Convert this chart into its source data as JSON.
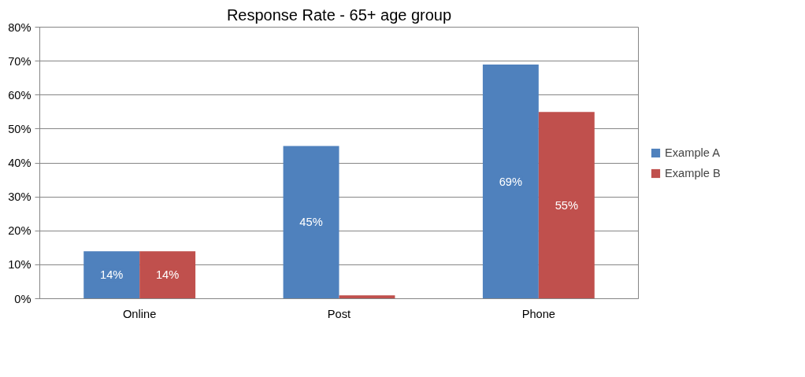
{
  "chart_data": {
    "type": "bar",
    "title": "Response Rate - 65+ age group",
    "categories": [
      "Online",
      "Post",
      "Phone"
    ],
    "series": [
      {
        "name": "Example A",
        "color": "#4f81bd",
        "values": [
          14,
          45,
          69
        ],
        "value_labels": [
          "14%",
          "45%",
          "69%"
        ]
      },
      {
        "name": "Example B",
        "color": "#c0504d",
        "values": [
          14,
          1,
          55
        ],
        "value_labels": [
          "14%",
          null,
          "55%"
        ]
      }
    ],
    "ylim": [
      0,
      80
    ],
    "yticks": [
      {
        "value": 0,
        "label": "0%"
      },
      {
        "value": 10,
        "label": "10%"
      },
      {
        "value": 20,
        "label": "20%"
      },
      {
        "value": 30,
        "label": "30%"
      },
      {
        "value": 40,
        "label": "40%"
      },
      {
        "value": 50,
        "label": "50%"
      },
      {
        "value": 60,
        "label": "60%"
      },
      {
        "value": 70,
        "label": "70%"
      },
      {
        "value": 80,
        "label": "80%"
      }
    ],
    "grid": "y",
    "legend": "right"
  }
}
